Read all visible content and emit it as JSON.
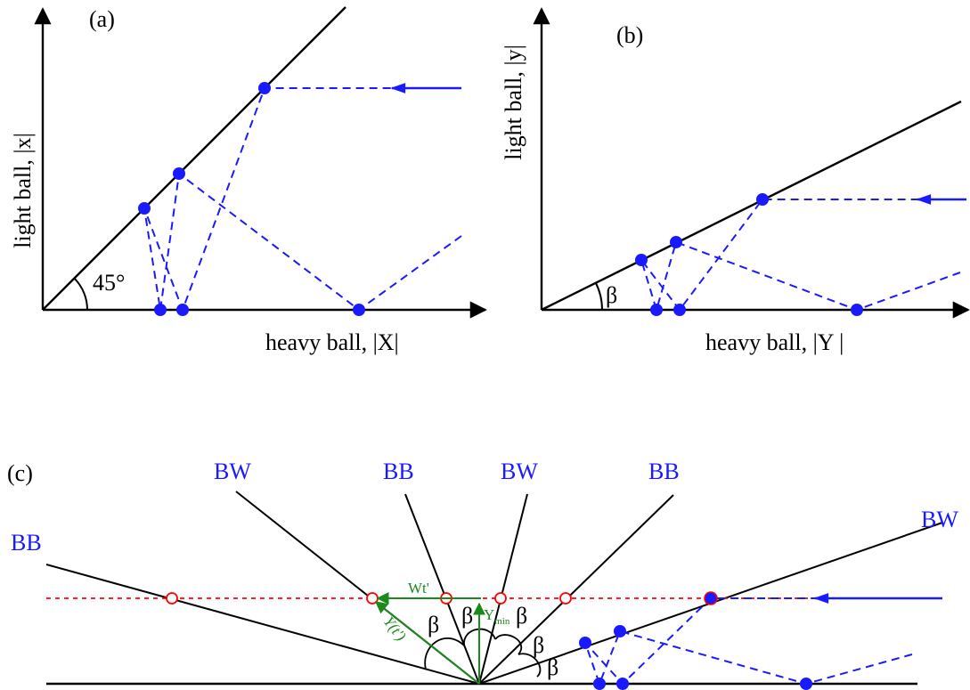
{
  "panels": {
    "a": {
      "label": "(a)",
      "ylabel": "light ball, |x|",
      "xlabel": "heavy ball, |X|",
      "angle_label": "45°"
    },
    "b": {
      "label": "(b)",
      "ylabel": "light ball, |y|",
      "xlabel": "heavy ball, |Y |",
      "angle_label": "β"
    },
    "c": {
      "label": "(c)",
      "wall_labels": [
        "BB",
        "BW",
        "BB",
        "BW",
        "BB",
        "BW"
      ],
      "beta": "β",
      "wt_label": "Wt'",
      "y_main": "Y",
      "y_sub": "min",
      "yt_label": "Y(t')"
    }
  },
  "colors": {
    "axes": "#000000",
    "trajectory": "#1a1aff",
    "dot": "#1a1aff",
    "red_line": "#ff0000",
    "green": "#1a8a1a"
  }
}
